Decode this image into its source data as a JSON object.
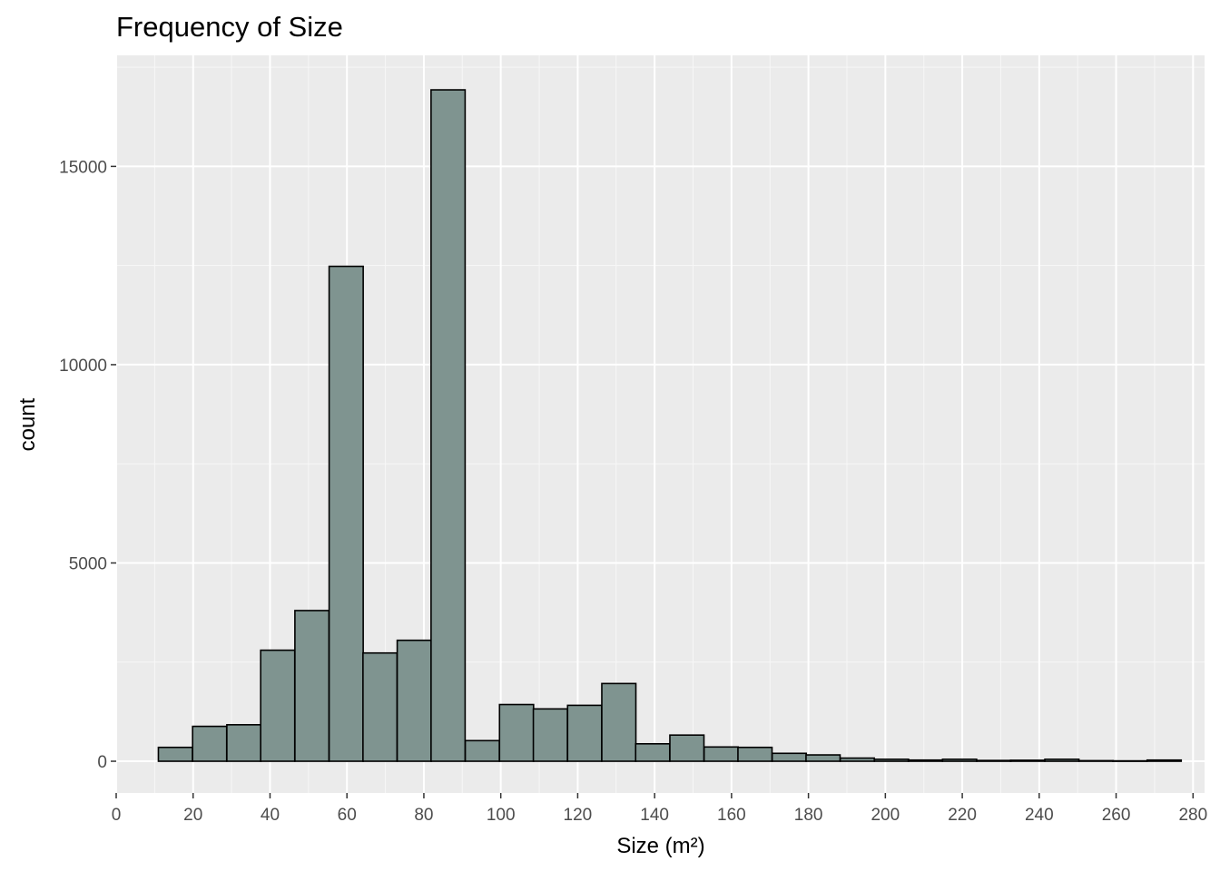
{
  "chart_data": {
    "type": "bar",
    "title": "Frequency of Size",
    "xlabel": "Size (m²)",
    "ylabel": "count",
    "xlim": [
      0,
      283
    ],
    "ylim": [
      -800,
      17800
    ],
    "x_ticks": [
      0,
      20,
      40,
      60,
      80,
      100,
      120,
      140,
      160,
      180,
      200,
      220,
      240,
      260,
      280
    ],
    "y_ticks": [
      0,
      5000,
      10000,
      15000
    ],
    "grid": true,
    "bar_fill": "#7f9490",
    "bar_stroke": "#000000",
    "panel_background": "#ebebeb",
    "bin_width": 8.86,
    "bins": [
      {
        "x": 15.4,
        "count": 350
      },
      {
        "x": 24.3,
        "count": 880
      },
      {
        "x": 33.2,
        "count": 920
      },
      {
        "x": 42.0,
        "count": 2800
      },
      {
        "x": 50.9,
        "count": 3800
      },
      {
        "x": 59.8,
        "count": 12480
      },
      {
        "x": 68.6,
        "count": 2730
      },
      {
        "x": 77.5,
        "count": 3050
      },
      {
        "x": 86.3,
        "count": 16930
      },
      {
        "x": 95.2,
        "count": 520
      },
      {
        "x": 104.1,
        "count": 1430
      },
      {
        "x": 112.9,
        "count": 1320
      },
      {
        "x": 121.8,
        "count": 1410
      },
      {
        "x": 130.7,
        "count": 1960
      },
      {
        "x": 139.5,
        "count": 440
      },
      {
        "x": 148.4,
        "count": 660
      },
      {
        "x": 157.3,
        "count": 360
      },
      {
        "x": 166.1,
        "count": 350
      },
      {
        "x": 175.0,
        "count": 200
      },
      {
        "x": 183.8,
        "count": 160
      },
      {
        "x": 192.7,
        "count": 80
      },
      {
        "x": 201.6,
        "count": 50
      },
      {
        "x": 210.4,
        "count": 30
      },
      {
        "x": 219.3,
        "count": 50
      },
      {
        "x": 228.2,
        "count": 20
      },
      {
        "x": 237.0,
        "count": 25
      },
      {
        "x": 245.9,
        "count": 50
      },
      {
        "x": 254.8,
        "count": 15
      },
      {
        "x": 263.6,
        "count": 10
      },
      {
        "x": 272.5,
        "count": 30
      }
    ]
  }
}
